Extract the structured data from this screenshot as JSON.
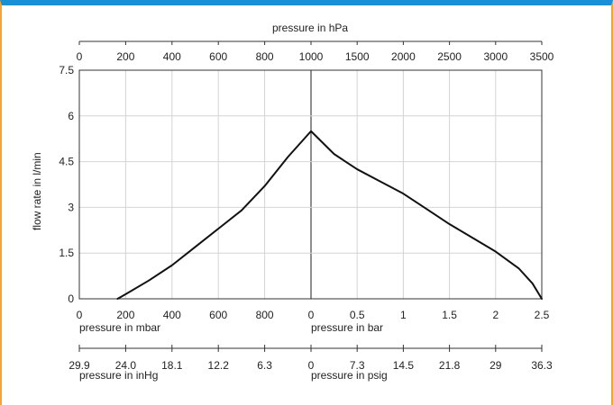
{
  "chart_data": {
    "type": "line",
    "title": "",
    "ylabel": "flow rate in l/min",
    "ylim": [
      0,
      7.5
    ],
    "yticks": [
      "0",
      "1.5",
      "3",
      "4.5",
      "6",
      "7.5"
    ],
    "grid": true,
    "top_axis": {
      "label": "pressure in hPa",
      "ticks": [
        "0",
        "200",
        "400",
        "600",
        "800",
        "1000",
        "1500",
        "2000",
        "2500",
        "3000",
        "3500"
      ]
    },
    "bottom_axis_left": {
      "label": "pressure in mbar",
      "ticks": [
        "0",
        "200",
        "400",
        "600",
        "800"
      ]
    },
    "bottom_axis_right": {
      "label": "pressure in bar",
      "ticks": [
        "0",
        "0.5",
        "1",
        "1.5",
        "2",
        "2.5"
      ]
    },
    "lower_axis_left": {
      "label": "pressure in inHg",
      "ticks": [
        "29.9",
        "24.0",
        "18.1",
        "12.2",
        "6.3"
      ]
    },
    "lower_axis_right": {
      "label": "pressure in psig",
      "ticks": [
        "0",
        "7.3",
        "14.5",
        "21.8",
        "29",
        "36.3"
      ]
    },
    "series": [
      {
        "x_hPa": [
          165,
          200,
          300,
          400,
          500,
          600,
          700,
          800,
          900,
          1000,
          1250,
          1500,
          1750,
          2000,
          2250,
          2500,
          2750,
          3000,
          3250,
          3400,
          3500
        ],
        "y": [
          0,
          0.15,
          0.6,
          1.1,
          1.7,
          2.3,
          2.9,
          3.7,
          4.65,
          5.5,
          4.75,
          4.25,
          3.85,
          3.45,
          2.95,
          2.45,
          2.0,
          1.55,
          1.0,
          0.5,
          0
        ]
      }
    ]
  }
}
